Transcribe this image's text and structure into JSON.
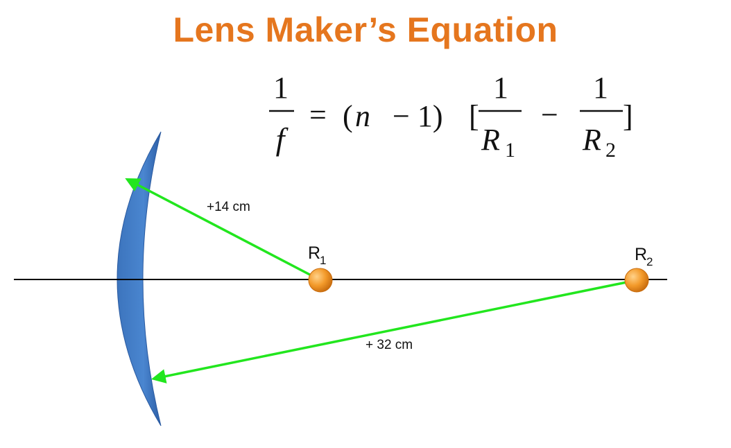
{
  "title": "Lens Maker’s Equation",
  "equation": {
    "lhs_numerator": "1",
    "lhs_denominator": "f",
    "equals": "=",
    "open_paren": "(",
    "n_symbol": "n",
    "minus_one": "− 1)",
    "open_bracket": "[",
    "term1_numerator": "1",
    "term1_symbol": "R",
    "term1_subscript": "1",
    "minus": "−",
    "term2_numerator": "1",
    "term2_symbol": "R",
    "term2_subscript": "2",
    "close_bracket": "]"
  },
  "diagram": {
    "r1_label": "R",
    "r1_subscript": "1",
    "r2_label": "R",
    "r2_subscript": "2",
    "radius1_label": "+14 cm",
    "radius2_label": "+ 32 cm"
  },
  "colors": {
    "title": "#e5761e",
    "lens_light": "#4a86d0",
    "lens_dark": "#2a5aa0",
    "arrow": "#22e61e",
    "center_point": "#f39a2a",
    "axis": "#000000"
  }
}
